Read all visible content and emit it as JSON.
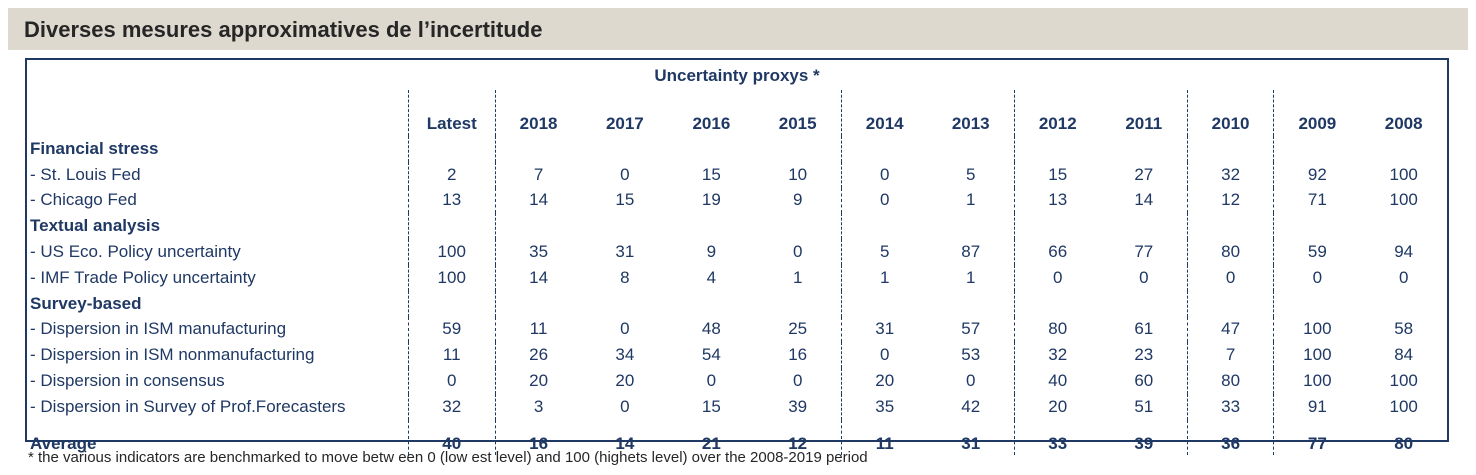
{
  "title": "Diverses mesures approximatives de l’incertitude",
  "caption": "Uncertainty proxys *",
  "columns": [
    "Latest",
    "2018",
    "2017",
    "2016",
    "2015",
    "2014",
    "2013",
    "2012",
    "2011",
    "2010",
    "2009",
    "2008"
  ],
  "rows": [
    {
      "label": "Financial stress",
      "section": true,
      "values": []
    },
    {
      "label": "- St. Louis Fed",
      "values": [
        "2",
        "7",
        "0",
        "15",
        "10",
        "0",
        "5",
        "15",
        "27",
        "32",
        "92",
        "100"
      ]
    },
    {
      "label": "- Chicago Fed",
      "values": [
        "13",
        "14",
        "15",
        "19",
        "9",
        "0",
        "1",
        "13",
        "14",
        "12",
        "71",
        "100"
      ]
    },
    {
      "label": "Textual analysis",
      "section": true,
      "values": []
    },
    {
      "label": "- US Eco. Policy uncertainty",
      "values": [
        "100",
        "35",
        "31",
        "9",
        "0",
        "5",
        "87",
        "66",
        "77",
        "80",
        "59",
        "94"
      ]
    },
    {
      "label": "- IMF Trade Policy uncertainty",
      "values": [
        "100",
        "14",
        "8",
        "4",
        "1",
        "1",
        "1",
        "0",
        "0",
        "0",
        "0",
        "0"
      ]
    },
    {
      "label": "Survey-based",
      "section": true,
      "values": []
    },
    {
      "label": "- Dispersion in ISM manufacturing",
      "values": [
        "59",
        "11",
        "0",
        "48",
        "25",
        "31",
        "57",
        "80",
        "61",
        "47",
        "100",
        "58"
      ]
    },
    {
      "label": "- Dispersion in ISM nonmanufacturing",
      "values": [
        "11",
        "26",
        "34",
        "54",
        "16",
        "0",
        "53",
        "32",
        "23",
        "7",
        "100",
        "84"
      ]
    },
    {
      "label": "- Dispersion in consensus",
      "values": [
        "0",
        "20",
        "20",
        "0",
        "0",
        "20",
        "0",
        "40",
        "60",
        "80",
        "100",
        "100"
      ]
    },
    {
      "label": "- Dispersion in Survey of Prof.Forecasters",
      "values": [
        "32",
        "3",
        "0",
        "15",
        "39",
        "35",
        "42",
        "20",
        "51",
        "33",
        "91",
        "100"
      ]
    }
  ],
  "average": {
    "label": "Average",
    "values": [
      "40",
      "16",
      "14",
      "21",
      "12",
      "11",
      "31",
      "33",
      "39",
      "36",
      "77",
      "80"
    ]
  },
  "footnote": "* the various indicators are benchmarked to move betw een 0 (low est level) and 100 (highets level) over the 2008-2019 period"
}
